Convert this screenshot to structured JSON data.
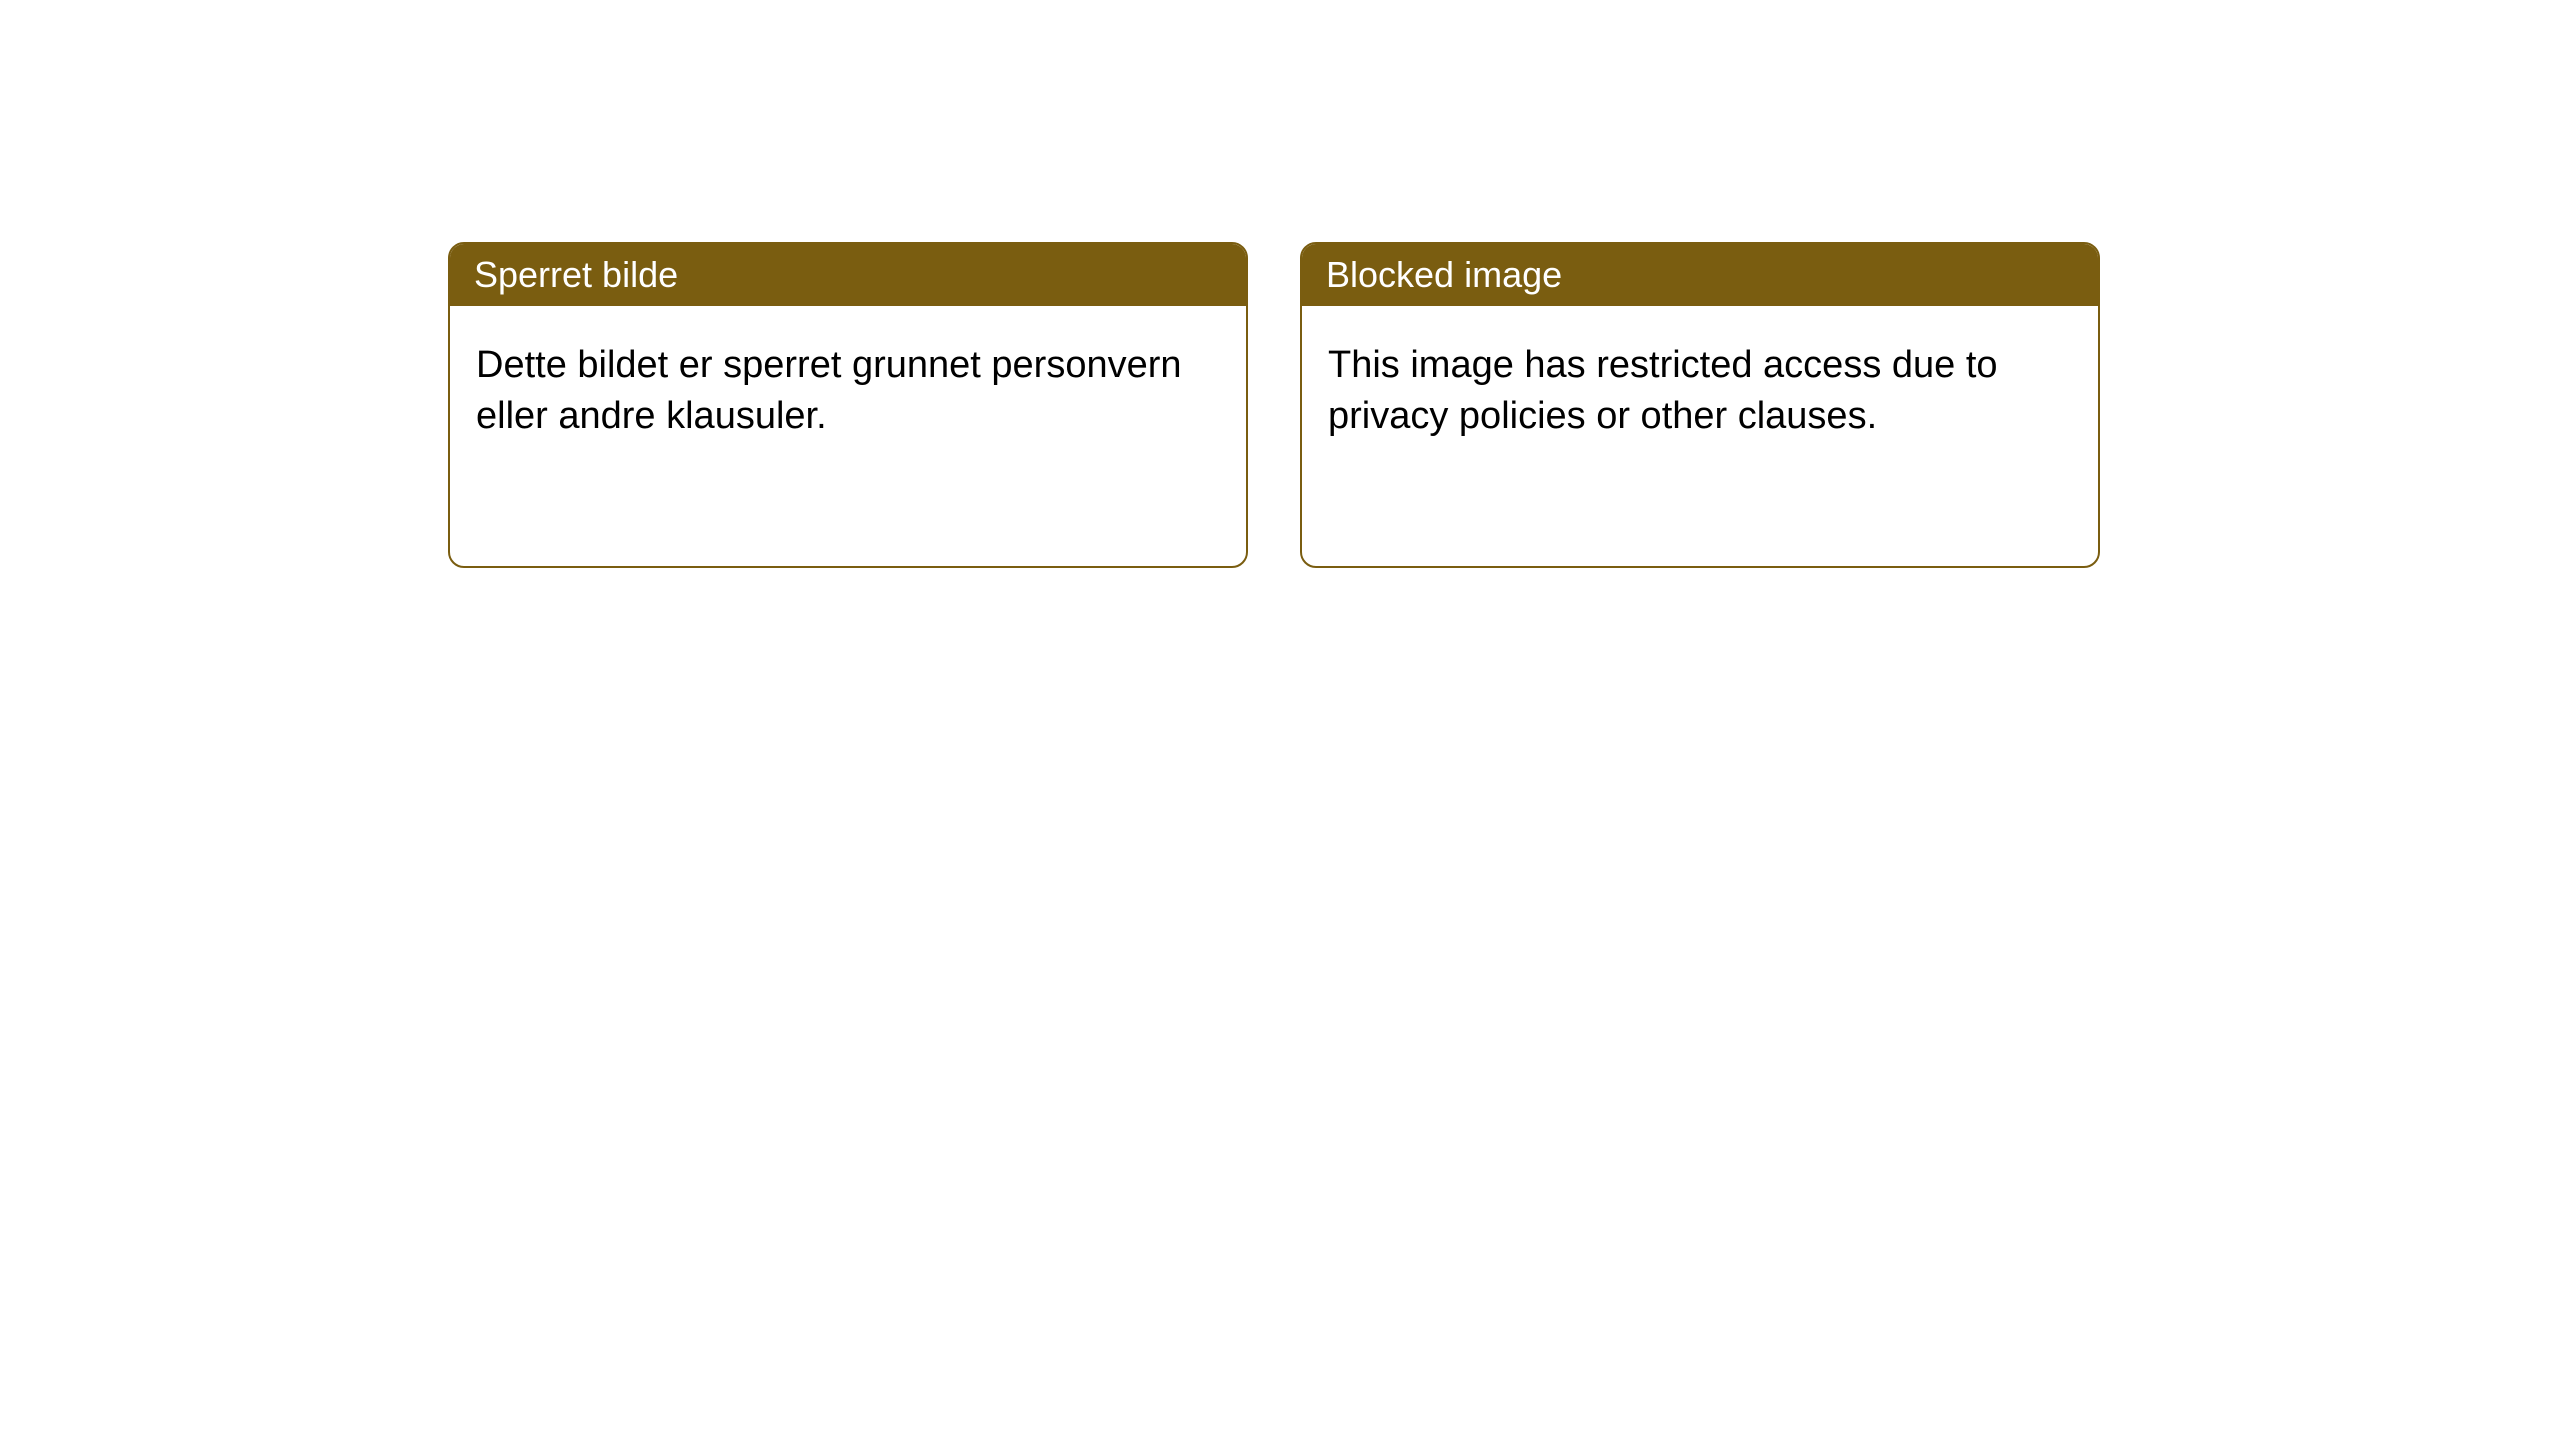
{
  "layout": {
    "background_color": "#ffffff",
    "card_border_color": "#7a5d10",
    "card_border_width": 2,
    "card_border_radius": 16,
    "header_background_color": "#7a5d10",
    "header_text_color": "#ffffff",
    "body_text_color": "#000000",
    "header_font_size": 36,
    "body_font_size": 38
  },
  "cards": [
    {
      "title": "Sperret bilde",
      "body": "Dette bildet er sperret grunnet personvern eller andre klausuler."
    },
    {
      "title": "Blocked image",
      "body": "This image has restricted access due to privacy policies or other clauses."
    }
  ]
}
